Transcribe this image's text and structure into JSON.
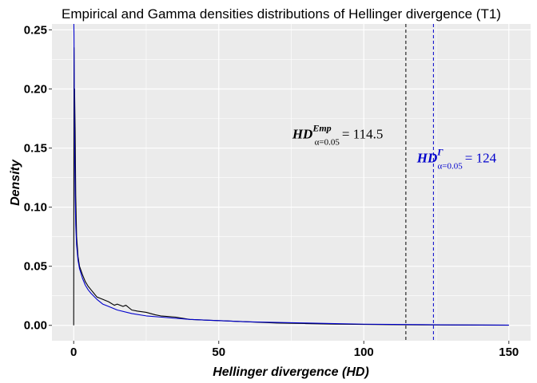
{
  "chart_data": {
    "type": "line",
    "title": "Empirical and Gamma densities distributions of Hellinger divergence (T1)",
    "xlabel": "Hellinger divergence (HD)",
    "ylabel": "Density",
    "xlim": [
      -7.5,
      157.5
    ],
    "ylim": [
      -0.013,
      0.255
    ],
    "x_ticks": [
      0,
      50,
      100,
      150
    ],
    "x_tick_labels": [
      "0",
      "50",
      "100",
      "150"
    ],
    "y_ticks": [
      0.0,
      0.05,
      0.1,
      0.15,
      0.2,
      0.25
    ],
    "y_tick_labels": [
      "0.00",
      "0.05",
      "0.10",
      "0.15",
      "0.20",
      "0.25"
    ],
    "grid": true,
    "background": "#ebebeb",
    "series": [
      {
        "key": "empirical",
        "color": "#000000",
        "x": [
          0,
          0.1,
          0.2,
          0.3,
          0.5,
          0.7,
          1,
          1.5,
          2,
          3,
          4,
          5,
          6,
          7,
          8,
          10,
          12,
          14,
          15,
          17,
          18,
          20,
          22,
          25,
          28,
          30,
          35,
          40,
          50,
          60,
          70,
          80,
          90,
          100,
          110,
          120,
          130,
          140,
          150
        ],
        "y": [
          0.0,
          0.235,
          0.19,
          0.2,
          0.165,
          0.11,
          0.075,
          0.058,
          0.05,
          0.043,
          0.037,
          0.033,
          0.03,
          0.027,
          0.024,
          0.022,
          0.02,
          0.017,
          0.018,
          0.016,
          0.017,
          0.013,
          0.012,
          0.011,
          0.009,
          0.008,
          0.007,
          0.005,
          0.004,
          0.003,
          0.002,
          0.0015,
          0.001,
          0.0008,
          0.0005,
          0.0004,
          0.0003,
          0.0002,
          0.0001
        ]
      },
      {
        "key": "gamma",
        "color": "#0000cc",
        "x": [
          0.05,
          0.1,
          0.2,
          0.3,
          0.5,
          0.7,
          1,
          1.5,
          2,
          3,
          4,
          5,
          6,
          8,
          10,
          12,
          15,
          20,
          25,
          30,
          40,
          50,
          60,
          70,
          80,
          90,
          100,
          110,
          120,
          130,
          140,
          150
        ],
        "y": [
          0.255,
          0.245,
          0.2,
          0.16,
          0.11,
          0.085,
          0.068,
          0.055,
          0.048,
          0.04,
          0.034,
          0.03,
          0.027,
          0.022,
          0.018,
          0.016,
          0.013,
          0.01,
          0.008,
          0.007,
          0.005,
          0.004,
          0.003,
          0.0025,
          0.002,
          0.0015,
          0.001,
          0.0008,
          0.0006,
          0.0004,
          0.0003,
          0.0002
        ]
      }
    ],
    "vlines": [
      {
        "x": 114.5,
        "color": "#000000",
        "style": "dashed"
      },
      {
        "x": 124,
        "color": "#0000cc",
        "style": "dashed"
      }
    ],
    "annotations": [
      {
        "key": "emp",
        "color": "#000000",
        "main": "HD",
        "sup": "Emp",
        "sub": "α=0.05",
        "value_text": "= 114.5",
        "x": 91,
        "y": 0.158
      },
      {
        "key": "gamma",
        "color": "#0000cc",
        "main": "HD",
        "sup": "Γ",
        "sub": "α=0.05",
        "value_text": "= 124",
        "x": 132,
        "y": 0.138
      }
    ]
  }
}
